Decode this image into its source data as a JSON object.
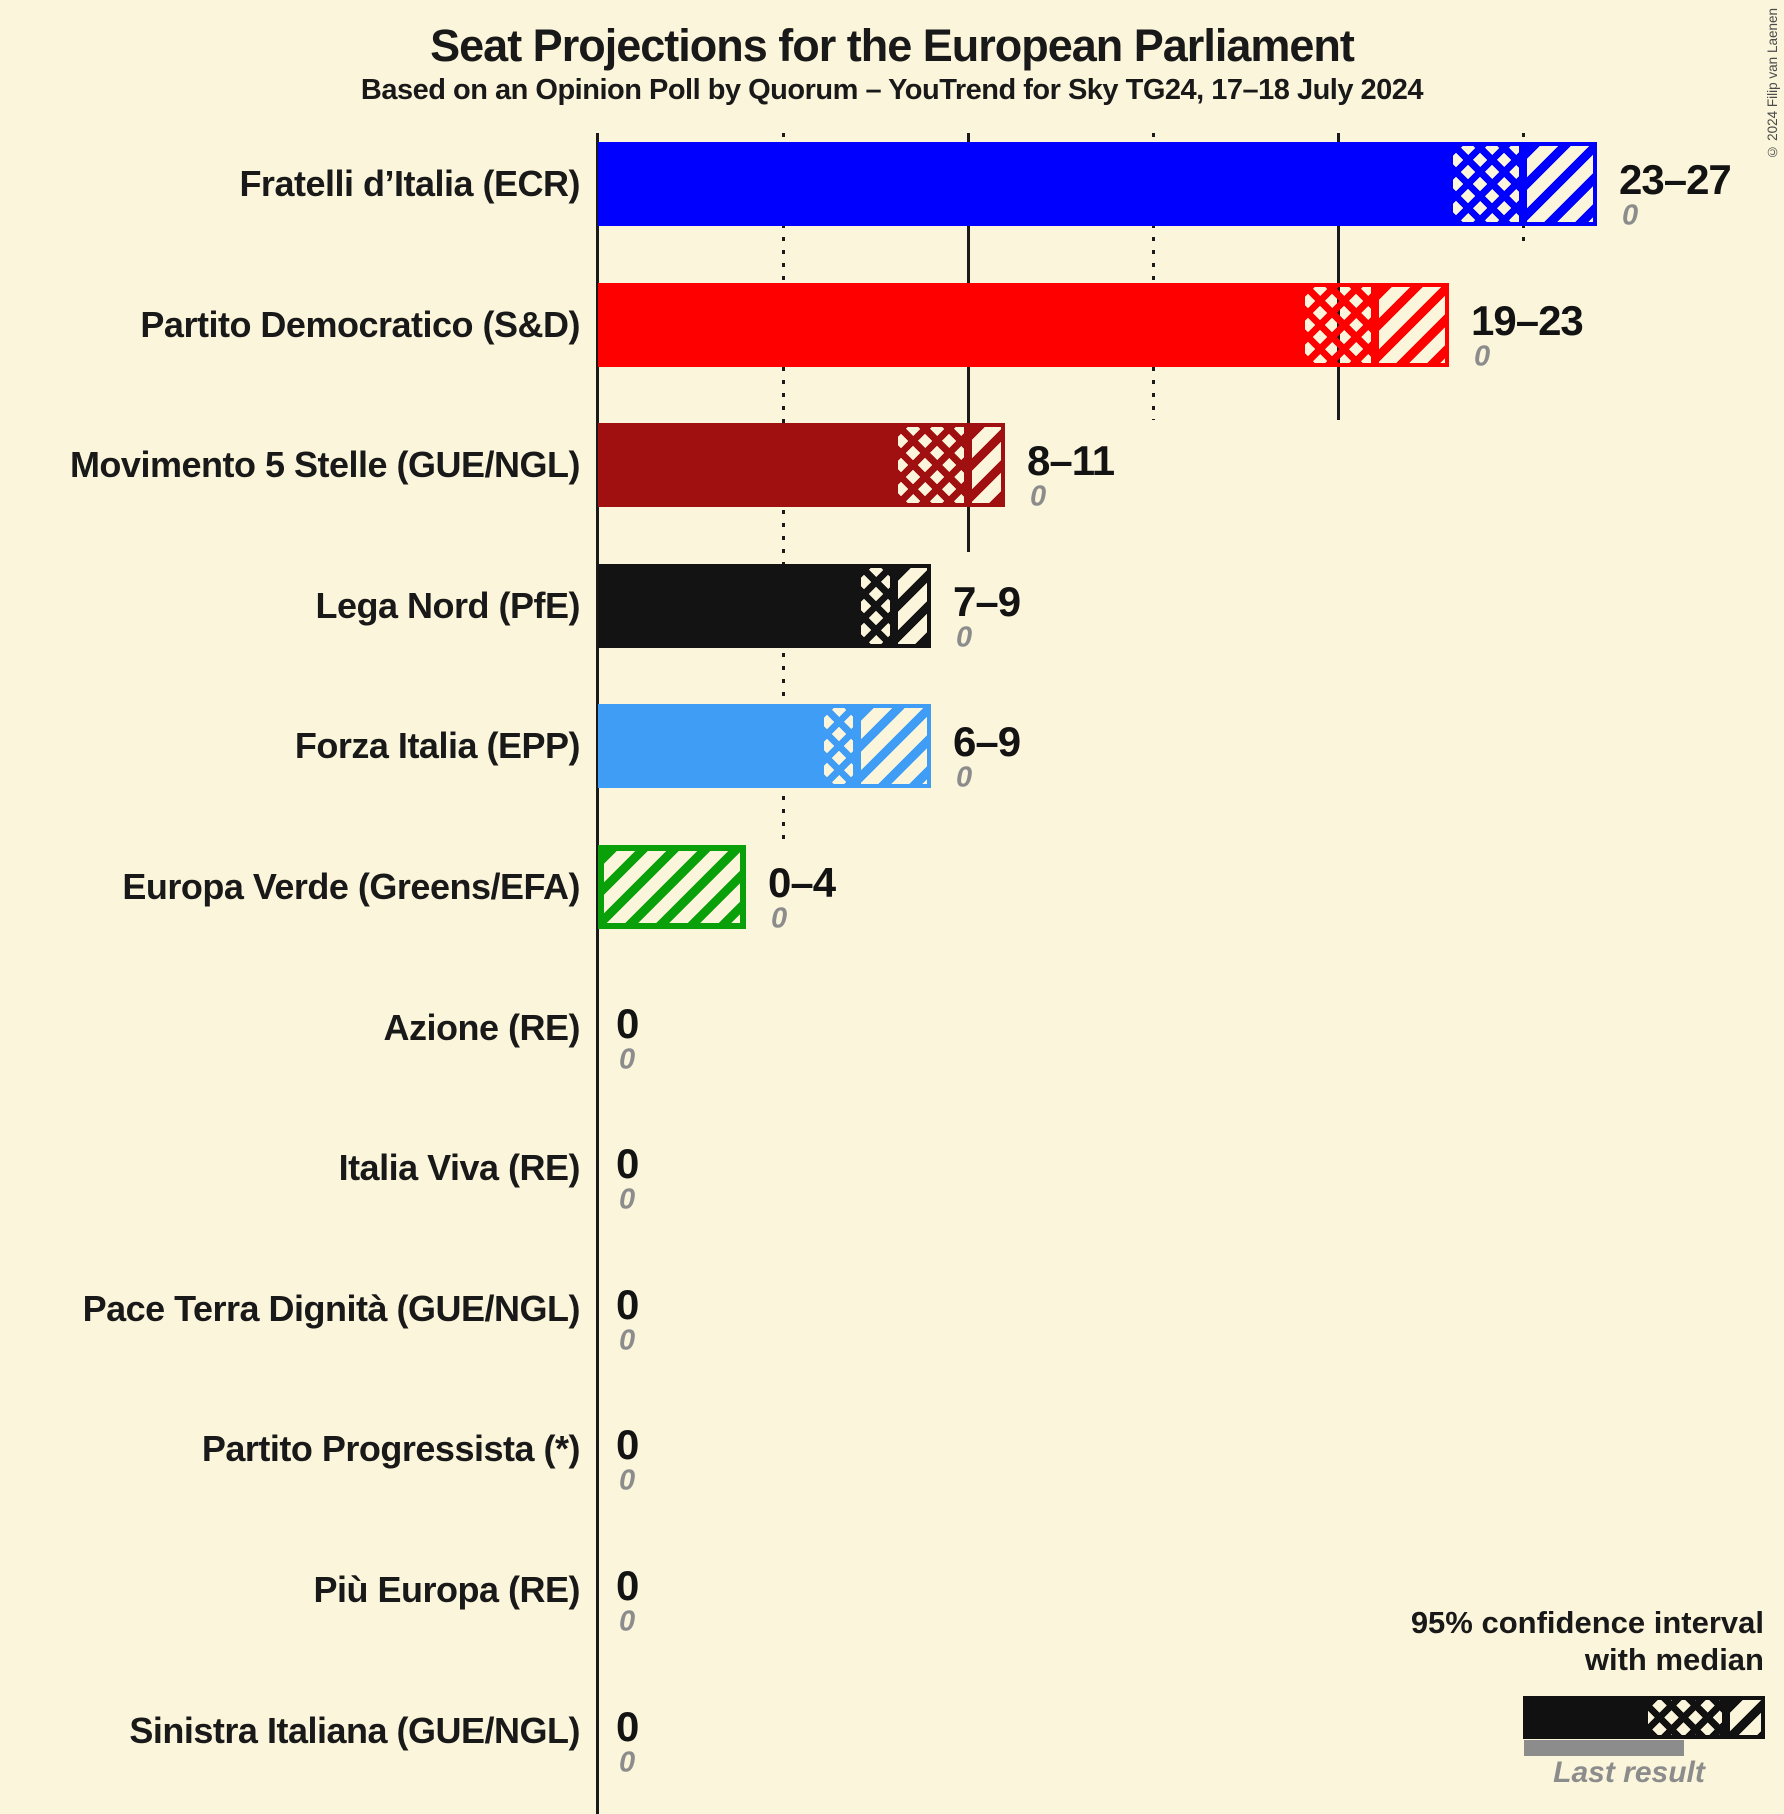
{
  "header": {
    "title": "Seat Projections for the European Parliament",
    "subtitle": "Based on an Opinion Poll by Quorum – YouTrend for Sky TG24, 17–18 July 2024"
  },
  "copyright": "© 2024 Filip van Laenen",
  "legend": {
    "ci_line1": "95% confidence interval",
    "ci_line2": "with median",
    "last_result_label": "Last result"
  },
  "colors": {
    "background": "#FBF6DB",
    "text": "#191919",
    "gridline": "#1A1A1A",
    "muted_gray": "#8C8C8C",
    "legend_sample": "#111111"
  },
  "chart_data": {
    "type": "bar",
    "orientation": "horizontal",
    "unit": "seats",
    "title": "Seat Projections for the European Parliament",
    "x_axis": {
      "min": 0,
      "max": 27,
      "gridline_step": 5,
      "solid_gridline_step": 10,
      "tick_labels_shown": false
    },
    "parties": [
      {
        "label": "Fratelli d’Italia (ECR)",
        "low": 23,
        "median": 25,
        "high": 27,
        "range_label": "23–27",
        "last_result": "0",
        "color": "#0000FE"
      },
      {
        "label": "Partito Democratico (S&D)",
        "low": 19,
        "median": 21,
        "high": 23,
        "range_label": "19–23",
        "last_result": "0",
        "color": "#FE0000"
      },
      {
        "label": "Movimento 5 Stelle (GUE/NGL)",
        "low": 8,
        "median": 10,
        "high": 11,
        "range_label": "8–11",
        "last_result": "0",
        "color": "#A01010"
      },
      {
        "label": "Lega Nord (PfE)",
        "low": 7,
        "median": 8,
        "high": 9,
        "range_label": "7–9",
        "last_result": "0",
        "color": "#131313"
      },
      {
        "label": "Forza Italia (EPP)",
        "low": 6,
        "median": 7,
        "high": 9,
        "range_label": "6–9",
        "last_result": "0",
        "color": "#3F9DF5"
      },
      {
        "label": "Europa Verde (Greens/EFA)",
        "low": 0,
        "median": 0,
        "high": 4,
        "range_label": "0–4",
        "last_result": "0",
        "color": "#0AA00A"
      },
      {
        "label": "Azione (RE)",
        "low": 0,
        "median": 0,
        "high": 0,
        "range_label": "0",
        "last_result": "0",
        "color": null
      },
      {
        "label": "Italia Viva (RE)",
        "low": 0,
        "median": 0,
        "high": 0,
        "range_label": "0",
        "last_result": "0",
        "color": null
      },
      {
        "label": "Pace Terra Dignità (GUE/NGL)",
        "low": 0,
        "median": 0,
        "high": 0,
        "range_label": "0",
        "last_result": "0",
        "color": null
      },
      {
        "label": "Partito Progressista (*)",
        "low": 0,
        "median": 0,
        "high": 0,
        "range_label": "0",
        "last_result": "0",
        "color": null
      },
      {
        "label": "Più Europa (RE)",
        "low": 0,
        "median": 0,
        "high": 0,
        "range_label": "0",
        "last_result": "0",
        "color": null
      },
      {
        "label": "Sinistra Italiana (GUE/NGL)",
        "low": 0,
        "median": 0,
        "high": 0,
        "range_label": "0",
        "last_result": "0",
        "color": null
      }
    ],
    "legend_sample": {
      "low_fraction": 0.5,
      "median_fraction": 0.84
    }
  }
}
